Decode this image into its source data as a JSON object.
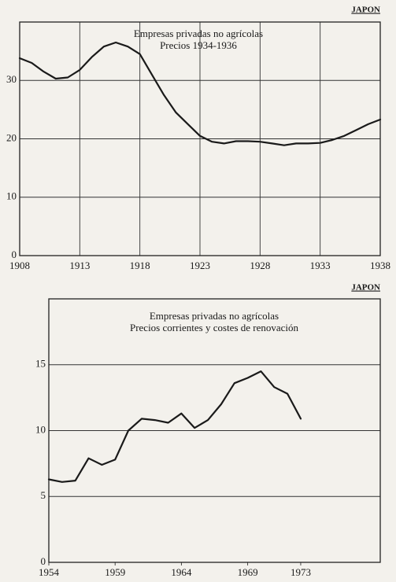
{
  "chart_data": [
    {
      "type": "line",
      "label": "JAPON",
      "title": "Empresas privadas no agrícolas",
      "subtitle": "Precios 1934-1936",
      "x": [
        1908,
        1909,
        1910,
        1911,
        1912,
        1913,
        1914,
        1915,
        1916,
        1917,
        1918,
        1919,
        1920,
        1921,
        1922,
        1923,
        1924,
        1925,
        1926,
        1927,
        1928,
        1929,
        1930,
        1931,
        1932,
        1933,
        1934,
        1935,
        1936,
        1937,
        1938
      ],
      "values": [
        33.8,
        33,
        31.5,
        30.3,
        30.5,
        31.8,
        34,
        35.8,
        36.5,
        35.8,
        34.5,
        31,
        27.5,
        24.5,
        22.5,
        20.5,
        19.5,
        19.2,
        19.6,
        19.6,
        19.5,
        19.2,
        18.9,
        19.2,
        19.2,
        19.3,
        19.8,
        20.5,
        21.5,
        22.5,
        23.3
      ],
      "color": "#1a1a1a",
      "xlim": [
        1908,
        1938
      ],
      "xticks": [
        1908,
        1913,
        1918,
        1923,
        1928,
        1933,
        1938
      ],
      "ylim": [
        0,
        40
      ],
      "yticks": [
        0,
        10,
        20,
        30
      ],
      "grid": "both"
    },
    {
      "type": "line",
      "label": "JAPON",
      "title": "Empresas privadas no agrícolas",
      "subtitle": "Precios corrientes y costes de renovación",
      "x": [
        1954,
        1955,
        1956,
        1957,
        1958,
        1959,
        1960,
        1961,
        1962,
        1963,
        1964,
        1965,
        1966,
        1967,
        1968,
        1969,
        1970,
        1971,
        1972,
        1973
      ],
      "values": [
        6.3,
        6.1,
        6.2,
        7.9,
        7.4,
        7.8,
        10.0,
        10.9,
        10.8,
        10.6,
        11.3,
        10.2,
        10.8,
        12.0,
        13.6,
        14.0,
        14.5,
        13.3,
        12.8,
        10.9
      ],
      "color": "#1a1a1a",
      "xlim": [
        1954,
        1979
      ],
      "xticks": [
        1954,
        1959,
        1964,
        1969,
        1973
      ],
      "ylim": [
        0,
        20
      ],
      "yticks": [
        0,
        5,
        10,
        15
      ],
      "grid": "y"
    }
  ]
}
